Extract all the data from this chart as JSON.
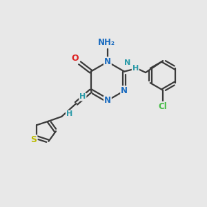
{
  "background_color": "#e8e8e8",
  "bond_color": "#3a3a3a",
  "atom_colors": {
    "N": "#1a6bbf",
    "O": "#dd2222",
    "S": "#bbbb00",
    "Cl": "#44bb44",
    "C": "#3a3a3a",
    "H": "#2a9aa8",
    "NH": "#2a9aa8"
  }
}
